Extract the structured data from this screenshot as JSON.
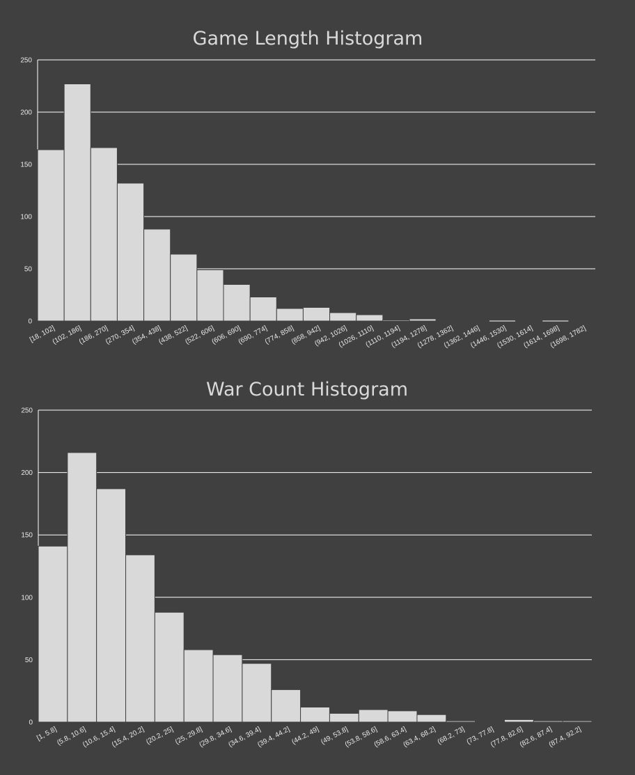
{
  "chart_data": [
    {
      "type": "bar",
      "title": "Game Length Histogram",
      "xlabel": "",
      "ylabel": "",
      "ylim": [
        0,
        250
      ],
      "yticks": [
        0,
        50,
        100,
        150,
        200,
        250
      ],
      "grid": true,
      "colors": {
        "background": "#404040",
        "bar": "#d9d9d9",
        "text": "#d9d9d9",
        "grid": "#ffffff"
      },
      "categories": [
        "[18, 102]",
        "(102, 186]",
        "(186, 270]",
        "(270, 354]",
        "(354, 438]",
        "(438, 522]",
        "(522, 606]",
        "(606, 690]",
        "(690, 774]",
        "(774, 858]",
        "(858, 942]",
        "(942, 1026]",
        "(1026, 1110]",
        "(1110, 1194]",
        "(1194, 1278]",
        "(1278, 1362]",
        "(1362, 1446]",
        "(1446, 1530]",
        "(1530, 1614]",
        "(1614, 1698]",
        "(1698, 1782]"
      ],
      "values": [
        164,
        227,
        166,
        132,
        88,
        64,
        49,
        35,
        23,
        12,
        13,
        8,
        6,
        1,
        2,
        0.5,
        0.5,
        0,
        0.5,
        0,
        0.5
      ]
    },
    {
      "type": "bar",
      "title": "War Count Histogram",
      "xlabel": "",
      "ylabel": "",
      "ylim": [
        0,
        250
      ],
      "yticks": [
        0,
        50,
        100,
        150,
        200,
        250
      ],
      "grid": true,
      "colors": {
        "background": "#404040",
        "bar": "#d9d9d9",
        "text": "#d9d9d9",
        "grid": "#ffffff"
      },
      "categories": [
        "[1, 5.8]",
        "(5.8, 10.6]",
        "(10.6, 15.4]",
        "(15.4, 20.2]",
        "(20.2, 25]",
        "(25, 29.8]",
        "(29.8, 34.6]",
        "(34.6, 39.4]",
        "(39.4, 44.2]",
        "(44.2, 49]",
        "(49, 53.8]",
        "(53.8, 58.6]",
        "(58.6, 63.4]",
        "(63.4, 68.2]",
        "(68.2, 73]",
        "(73, 77.8]",
        "(77.8, 82.6]",
        "(82.6, 87.4]",
        "(87.4, 92.2]"
      ],
      "values": [
        141,
        216,
        187,
        134,
        88,
        58,
        54,
        47,
        26,
        12,
        7,
        10,
        9,
        6,
        1,
        0.5,
        2,
        1,
        1
      ]
    }
  ]
}
